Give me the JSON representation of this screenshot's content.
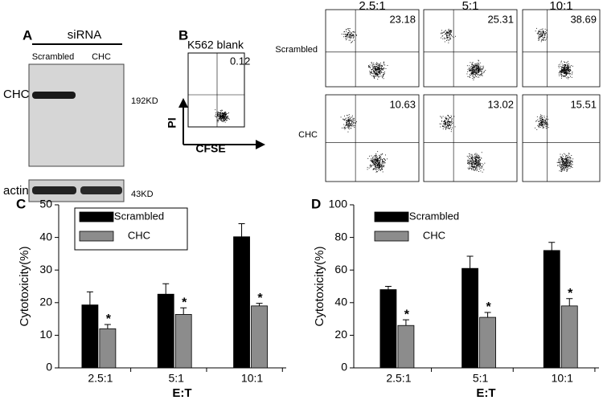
{
  "panel_a": {
    "label": "A",
    "header": "siRNA",
    "lanes": [
      "Scrambled",
      "CHC"
    ],
    "rows": [
      {
        "name": "CHC",
        "size": "192KD"
      },
      {
        "name": "actin",
        "size": "43KD"
      }
    ]
  },
  "panel_b": {
    "label": "B",
    "blank": {
      "title": "K562 blank",
      "value": 0.12,
      "y_label": "PI",
      "x_label": "CFSE"
    },
    "columns": [
      "2.5:1",
      "5:1",
      "10:1"
    ],
    "rows": [
      {
        "name": "Scrambled",
        "values": [
          23.18,
          25.31,
          38.69
        ]
      },
      {
        "name": "CHC",
        "values": [
          10.63,
          13.02,
          15.51
        ]
      }
    ]
  },
  "chart_data": [
    {
      "type": "bar",
      "panel": "C",
      "y_label": "Cytotoxicity(%)",
      "x_label": "E:T",
      "categories": [
        "2.5:1",
        "5:1",
        "10:1"
      ],
      "series": [
        {
          "name": "Scrambled",
          "color": "#000000",
          "values": [
            19.3,
            22.6,
            40.2
          ],
          "errors": [
            4.0,
            3.2,
            4.0
          ]
        },
        {
          "name": "CHC",
          "color": "#8c8c8c",
          "values": [
            12.0,
            16.4,
            19.0
          ],
          "errors": [
            1.3,
            2.0,
            0.8
          ],
          "annotations": [
            "*",
            "*",
            "*"
          ]
        }
      ],
      "ylim": [
        0,
        50
      ],
      "yticks": [
        0,
        10,
        20,
        30,
        40,
        50
      ],
      "legend": "upper left",
      "legend_box": true
    },
    {
      "type": "bar",
      "panel": "D",
      "y_label": "Cytotoxicity(%)",
      "x_label": "E:T",
      "categories": [
        "2.5:1",
        "5:1",
        "10:1"
      ],
      "series": [
        {
          "name": "Scrambled",
          "color": "#000000",
          "values": [
            48,
            61,
            72
          ],
          "errors": [
            2.0,
            7.5,
            5.0
          ]
        },
        {
          "name": "CHC",
          "color": "#8c8c8c",
          "values": [
            26,
            31,
            38
          ],
          "errors": [
            3.5,
            3.0,
            4.5
          ],
          "annotations": [
            "*",
            "*",
            "*"
          ]
        }
      ],
      "ylim": [
        0,
        100
      ],
      "yticks": [
        0,
        20,
        40,
        60,
        80,
        100
      ],
      "legend": "upper left",
      "legend_box": false
    }
  ]
}
